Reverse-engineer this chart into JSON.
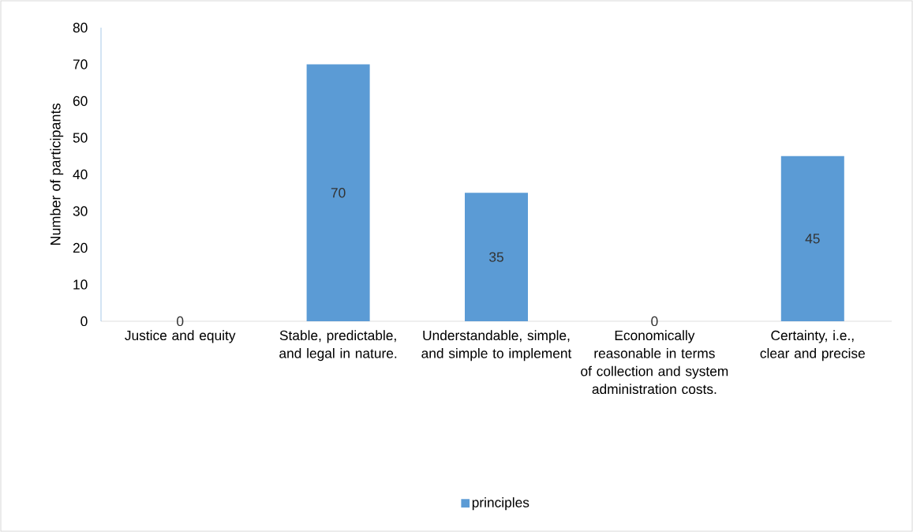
{
  "chart_data": {
    "type": "bar",
    "ylabel": "Number of participants",
    "categories": [
      "Justice and equity",
      "Stable, predictable, and legal in nature.",
      "Understandable, simple, and simple to implement",
      "Economically reasonable in terms of collection and system administration costs.",
      "Certainty, i.e., clear and precise"
    ],
    "series": [
      {
        "name": "principles",
        "color": "#5b9bd5",
        "values": [
          0,
          70,
          35,
          0,
          45
        ]
      }
    ],
    "ylim": [
      0,
      80
    ],
    "yticks": [
      0,
      10,
      20,
      30,
      40,
      50,
      60,
      70,
      80
    ],
    "data_labels": true,
    "legend": "bottom"
  }
}
